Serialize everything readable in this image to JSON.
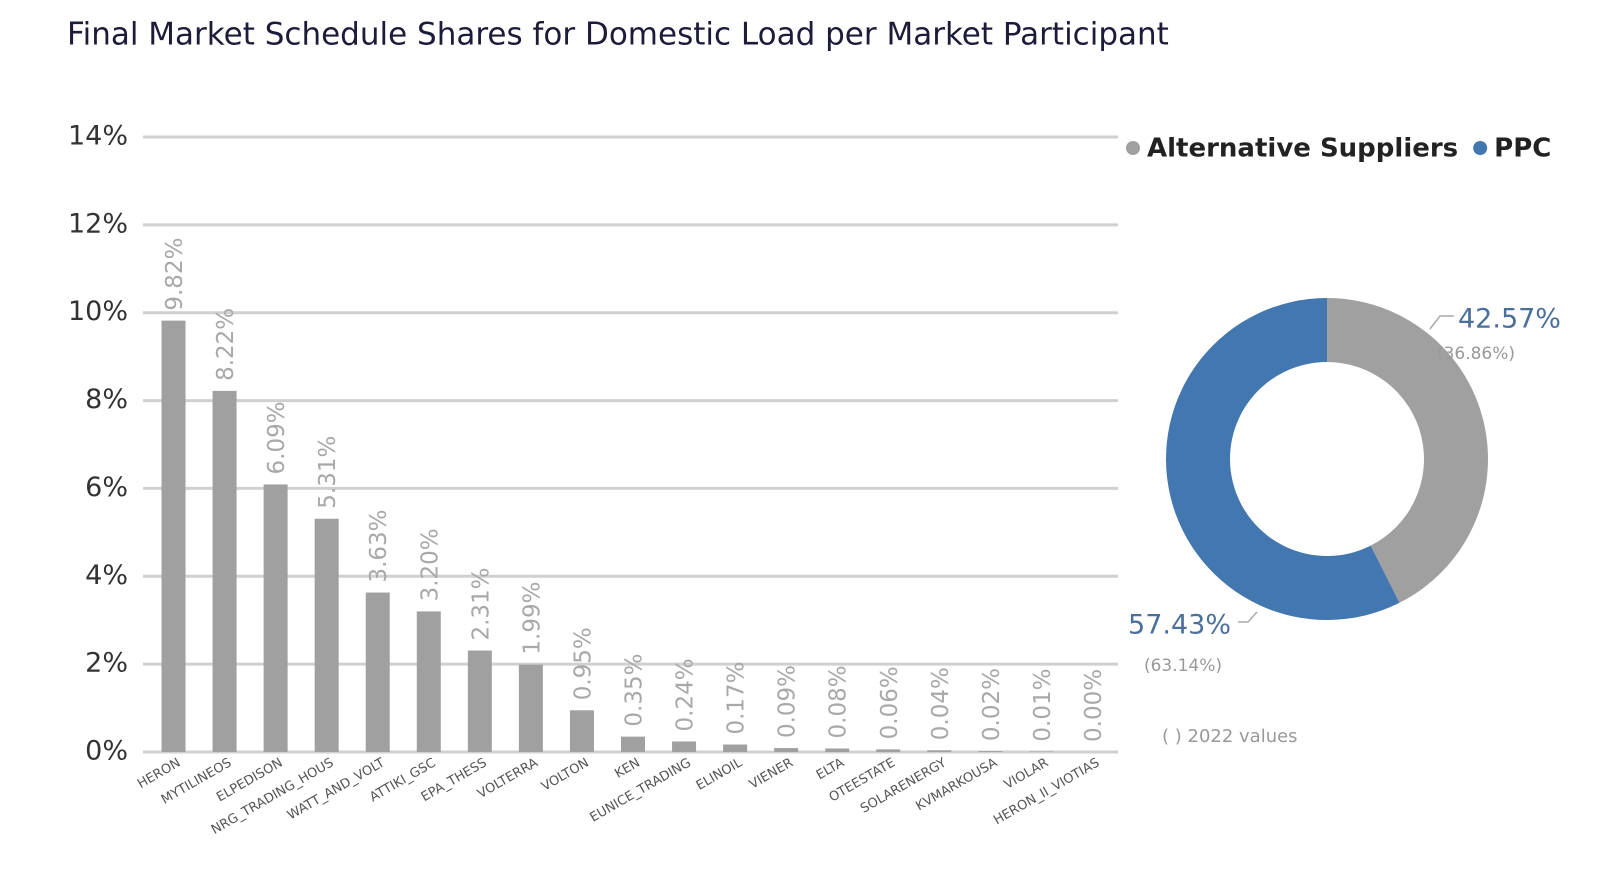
{
  "title": "Final Market Schedule Shares for Domestic Load per Market Participant",
  "chart_data": [
    {
      "type": "bar",
      "categories": [
        "HERON",
        "MYTILINEOS",
        "ELPEDISON",
        "NRG_TRADING_HOUS",
        "WATT_AND_VOLT",
        "ATTIKI_GSC",
        "EPA_THESS",
        "VOLTERRA",
        "VOLTON",
        "KEN",
        "EUNICE_TRADING",
        "ELINOIL",
        "VIENER",
        "ELTA",
        "OTEESTATE",
        "SOLARENERGY",
        "KVMARKOUSA",
        "VIOLAR",
        "HERON_II_VIOTIAS"
      ],
      "values": [
        9.82,
        8.22,
        6.09,
        5.31,
        3.63,
        3.2,
        2.31,
        1.99,
        0.95,
        0.35,
        0.24,
        0.17,
        0.09,
        0.08,
        0.06,
        0.04,
        0.02,
        0.01,
        0.0
      ],
      "value_labels": [
        "9.82%",
        "8.22%",
        "6.09%",
        "5.31%",
        "3.63%",
        "3.20%",
        "2.31%",
        "1.99%",
        "0.95%",
        "0.35%",
        "0.24%",
        "0.17%",
        "0.09%",
        "0.08%",
        "0.06%",
        "0.04%",
        "0.02%",
        "0.01%",
        "0.00%"
      ],
      "color": "#a0a0a0",
      "ylim": [
        0,
        14
      ],
      "yticks": [
        {
          "value": 0,
          "label": "0%"
        },
        {
          "value": 2,
          "label": "2%"
        },
        {
          "value": 4,
          "label": "4%"
        },
        {
          "value": 6,
          "label": "6%"
        },
        {
          "value": 8,
          "label": "8%"
        },
        {
          "value": 10,
          "label": "10%"
        },
        {
          "value": 12,
          "label": "12%"
        },
        {
          "value": 14,
          "label": "14%"
        }
      ],
      "grid": true
    },
    {
      "type": "donut",
      "categories": [
        "Alternative Suppliers",
        "PPC"
      ],
      "values": [
        42.57,
        57.43
      ],
      "value_labels": [
        "42.57%",
        "57.43%"
      ],
      "previous_values": [
        36.86,
        63.14
      ],
      "previous_value_labels": [
        "(36.86%)",
        "(63.14%)"
      ],
      "colors": [
        "#a0a0a0",
        "#4277b0"
      ],
      "legend": "top",
      "note": "( ) 2022 values"
    }
  ]
}
